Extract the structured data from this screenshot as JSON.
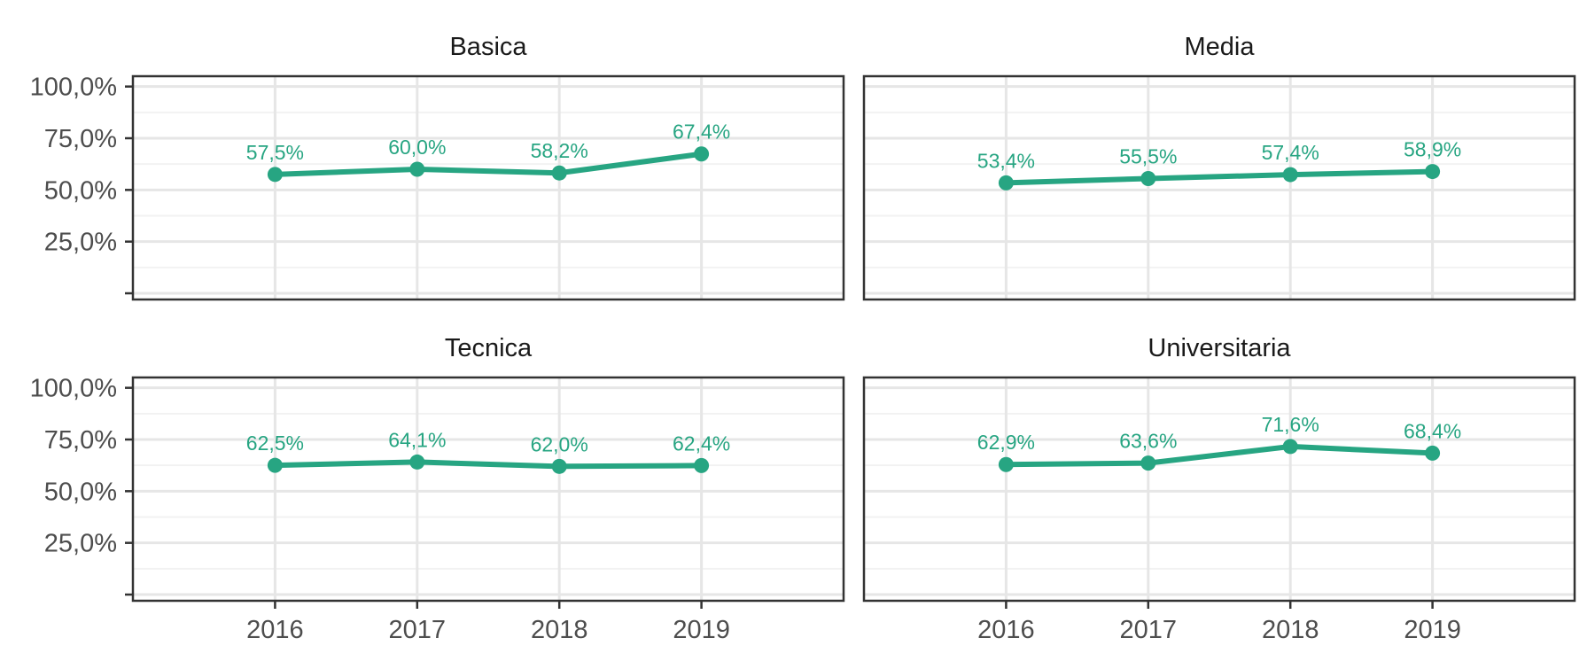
{
  "colors": {
    "series": "#27a582",
    "grid_major": "#e6e6e6",
    "grid_minor": "#f2f2f2",
    "panel_border": "#333333",
    "axis_text": "#4d4d4d"
  },
  "chart_data": {
    "type": "line",
    "facet_layout": "2x2",
    "x": [
      "2016",
      "2017",
      "2018",
      "2019"
    ],
    "ylim": [
      -0.03,
      1.05
    ],
    "y_ticks": [
      0,
      0.25,
      0.5,
      0.75,
      1.0
    ],
    "y_tick_labels": [
      "",
      "25,0%",
      "50,0%",
      "75,0%",
      "100,0%"
    ],
    "grid": true,
    "panels": [
      {
        "title": "Basica",
        "values": [
          0.575,
          0.6,
          0.582,
          0.674
        ],
        "labels": [
          "57,5%",
          "60,0%",
          "58,2%",
          "67,4%"
        ]
      },
      {
        "title": "Media",
        "values": [
          0.534,
          0.555,
          0.574,
          0.589
        ],
        "labels": [
          "53,4%",
          "55,5%",
          "57,4%",
          "58,9%"
        ]
      },
      {
        "title": "Tecnica",
        "values": [
          0.625,
          0.641,
          0.62,
          0.624
        ],
        "labels": [
          "62,5%",
          "64,1%",
          "62,0%",
          "62,4%"
        ]
      },
      {
        "title": "Universitaria",
        "values": [
          0.629,
          0.636,
          0.716,
          0.684
        ],
        "labels": [
          "62,9%",
          "63,6%",
          "71,6%",
          "68,4%"
        ]
      }
    ]
  }
}
